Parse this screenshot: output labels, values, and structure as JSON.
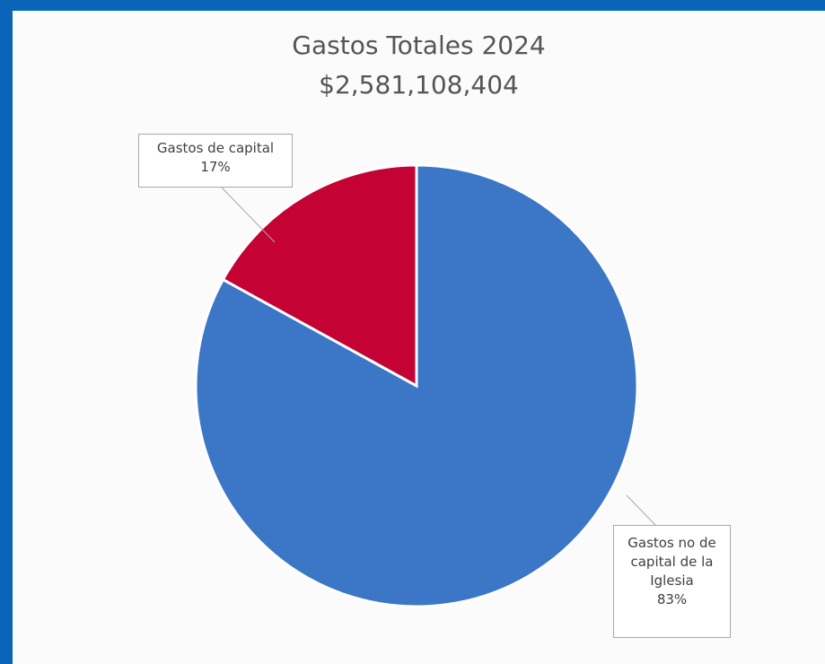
{
  "chart_data": {
    "type": "pie",
    "title": "Gastos Totales 2024",
    "subtitle": "$2,581,108,404",
    "slices": [
      {
        "name": "Gastos no de capital de la Iglesia",
        "label_lines": [
          "Gastos no de",
          "capital de la",
          "Iglesia"
        ],
        "percent_label": "83%",
        "value": 83,
        "color": "#3b77c6"
      },
      {
        "name": "Gastos de capital",
        "label_lines": [
          "Gastos de capital"
        ],
        "percent_label": "17%",
        "value": 17,
        "color": "#c40233"
      }
    ],
    "start_angle_deg": 0,
    "direction": "clockwise"
  },
  "colors": {
    "frame": "#0a64b8",
    "panel": "#fbfbfb",
    "slice_border": "#ffffff"
  }
}
